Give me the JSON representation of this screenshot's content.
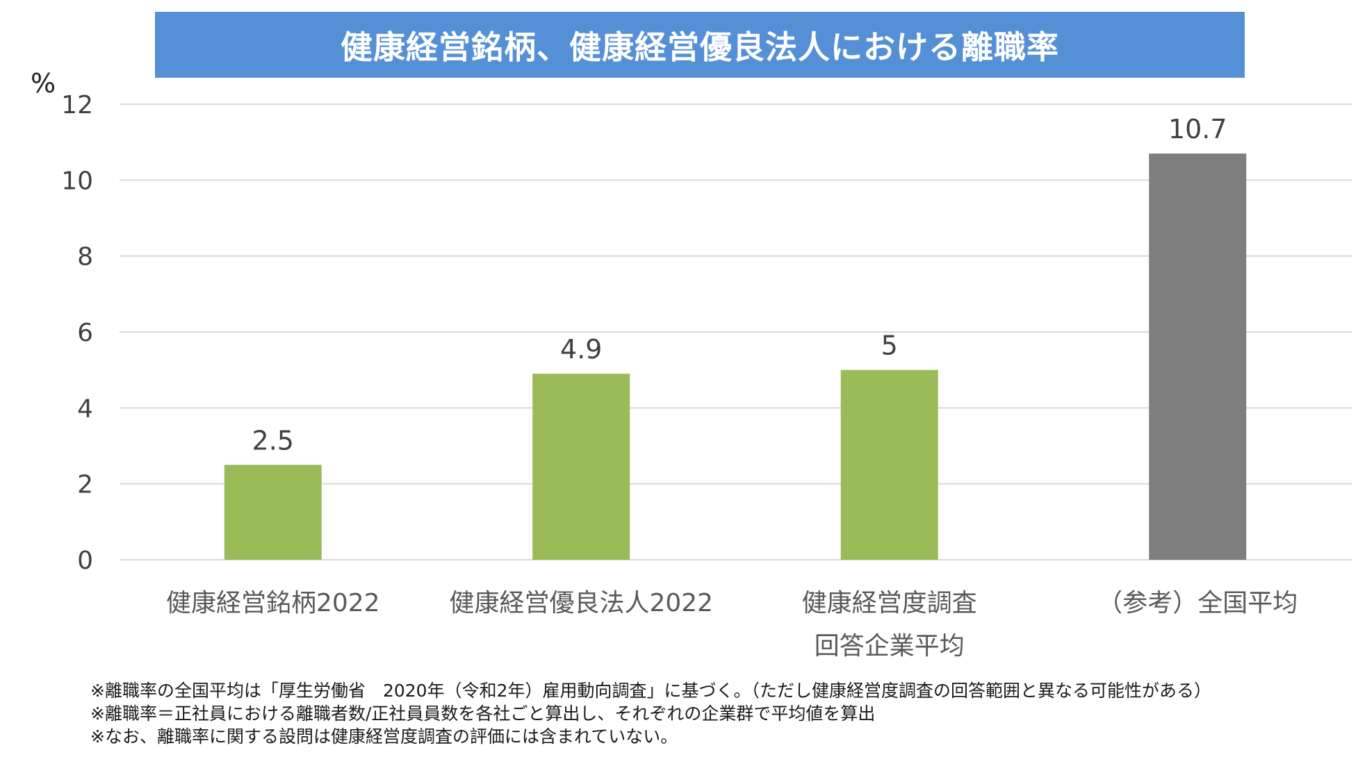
{
  "title": "健康経営銘柄、健康経営優良法人における離職率",
  "unit_label": "%",
  "colors": {
    "title_bg": "#5590d7",
    "title_text": "#ffffff",
    "bar_green": "#9bbb59",
    "bar_gray": "#7f7f7f",
    "grid": "#d9d9d9"
  },
  "chart_data": {
    "type": "bar",
    "categories": [
      [
        "健康経営銘柄2022"
      ],
      [
        "健康経営優良法人2022"
      ],
      [
        "健康経営度調査",
        "回答企業平均"
      ],
      [
        "（参考）全国平均"
      ]
    ],
    "values": [
      2.5,
      4.9,
      5,
      10.7
    ],
    "data_labels": [
      "2.5",
      "4.9",
      "5",
      "10.7"
    ],
    "bar_colors": [
      "#9bbb59",
      "#9bbb59",
      "#9bbb59",
      "#7f7f7f"
    ],
    "y_ticks": [
      0,
      2,
      4,
      6,
      8,
      10,
      12
    ],
    "ylim": [
      0,
      12
    ],
    "grid": true,
    "legend": "none"
  },
  "notes": [
    "※離職率の全国平均は「厚生労働省　2020年（令和2年）雇用動向調査」に基づく。（ただし健康経営度調査の回答範囲と異なる可能性がある）",
    "※離職率＝正社員における離職者数/正社員員数を各社ごと算出し、それぞれの企業群で平均値を算出",
    "※なお、離職率に関する設問は健康経営度調査の評価には含まれていない。"
  ]
}
